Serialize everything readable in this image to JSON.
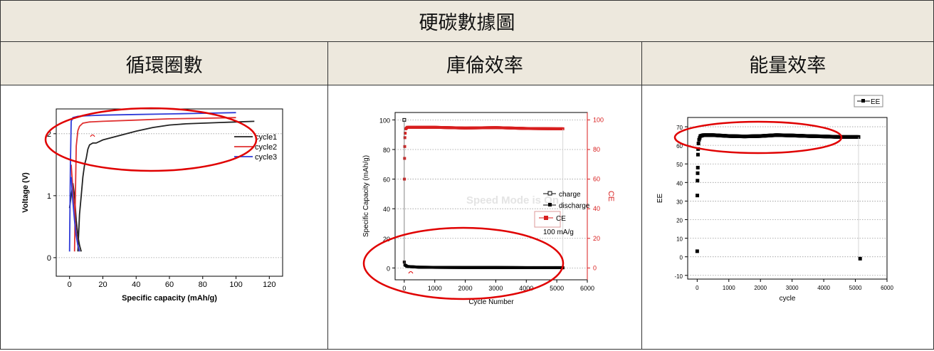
{
  "title": "硬碳數據圖",
  "headers": [
    "循環圈數",
    "庫倫效率",
    "能量效率"
  ],
  "colors": {
    "header_bg": "#ede8dd",
    "annotation": "#e00000",
    "cycle1": "#222222",
    "cycle2": "#e03030",
    "cycle3": "#2f3bd8",
    "ce": "#d81e1e"
  },
  "chart_data": [
    {
      "type": "line",
      "xlabel": "Specific capacity (mAh/g)",
      "ylabel": "Voltage (V)",
      "xlim": [
        -8,
        128
      ],
      "ylim": [
        -0.3,
        2.4
      ],
      "x_ticks": [
        "0",
        "20",
        "40",
        "60",
        "80",
        "100",
        "120"
      ],
      "y_ticks": [
        "0",
        "1",
        "2"
      ],
      "legend": [
        "cycle1",
        "cycle2",
        "cycle3"
      ],
      "series": [
        {
          "name": "cycle1",
          "charge": [
            [
              5,
              0.1
            ],
            [
              6,
              0.7
            ],
            [
              7,
              1.0
            ],
            [
              8,
              1.3
            ],
            [
              9,
              1.5
            ],
            [
              10,
              1.6
            ],
            [
              11,
              1.75
            ],
            [
              12,
              1.82
            ],
            [
              14,
              1.85
            ],
            [
              16,
              1.85
            ],
            [
              20,
              1.9
            ],
            [
              30,
              1.97
            ],
            [
              40,
              2.04
            ],
            [
              50,
              2.1
            ],
            [
              60,
              2.14
            ],
            [
              70,
              2.16
            ],
            [
              80,
              2.17
            ],
            [
              90,
              2.18
            ],
            [
              100,
              2.19
            ],
            [
              111,
              2.2
            ]
          ],
          "discharge": [
            [
              0,
              0.8
            ],
            [
              1,
              1.0
            ],
            [
              2,
              1.2
            ],
            [
              3,
              1.0
            ],
            [
              4,
              0.6
            ],
            [
              5,
              0.35
            ],
            [
              6,
              0.2
            ],
            [
              7,
              0.1
            ]
          ]
        },
        {
          "name": "cycle2",
          "charge": [
            [
              3,
              0.1
            ],
            [
              3.5,
              1.0
            ],
            [
              4,
              1.8
            ],
            [
              5,
              2.05
            ],
            [
              6,
              2.12
            ],
            [
              8,
              2.17
            ],
            [
              12,
              2.19
            ],
            [
              20,
              2.2
            ],
            [
              40,
              2.22
            ],
            [
              60,
              2.24
            ],
            [
              80,
              2.25
            ],
            [
              100,
              2.26
            ]
          ],
          "discharge": [
            [
              1,
              1.5
            ],
            [
              2,
              1.1
            ],
            [
              3,
              0.7
            ],
            [
              4,
              0.4
            ],
            [
              5,
              0.2
            ],
            [
              6,
              0.1
            ]
          ]
        },
        {
          "name": "cycle3",
          "charge": [
            [
              0,
              0.1
            ],
            [
              0.5,
              1.5
            ],
            [
              1,
              2.2
            ],
            [
              2,
              2.26
            ],
            [
              5,
              2.28
            ],
            [
              10,
              2.29
            ],
            [
              20,
              2.3
            ],
            [
              40,
              2.31
            ],
            [
              60,
              2.32
            ],
            [
              80,
              2.33
            ],
            [
              100,
              2.34
            ]
          ],
          "discharge": [
            [
              1,
              1.3
            ],
            [
              2,
              0.9
            ],
            [
              3,
              0.6
            ],
            [
              4,
              0.35
            ],
            [
              5,
              0.2
            ],
            [
              6,
              0.1
            ]
          ]
        }
      ]
    },
    {
      "type": "scatter",
      "xlabel": "Cycle Number",
      "ylabel": "Specific Capacity (mAh/g)",
      "y2label": "CE",
      "xlim": [
        -300,
        6000
      ],
      "ylim": [
        -8,
        105
      ],
      "x_ticks": [
        "0",
        "1000",
        "2000",
        "3000",
        "4000",
        "5000",
        "6000"
      ],
      "y_ticks": [
        "0",
        "20",
        "40",
        "60",
        "80",
        "100"
      ],
      "y2_ticks": [
        "0",
        "20",
        "40",
        "60",
        "80",
        "100"
      ],
      "legend": [
        "charge",
        "discharge",
        "CE"
      ],
      "note": "100 mA/g",
      "watermark": "Speed Mode is On",
      "series": [
        {
          "name": "charge",
          "points": [
            [
              1,
              100
            ],
            [
              5,
              3
            ],
            [
              50,
              1
            ],
            [
              200,
              0.5
            ],
            [
              1000,
              0.3
            ],
            [
              5200,
              0.2
            ]
          ]
        },
        {
          "name": "discharge",
          "points": [
            [
              1,
              4
            ],
            [
              20,
              2
            ],
            [
              100,
              1
            ],
            [
              500,
              0.5
            ],
            [
              1000,
              0.4
            ],
            [
              2000,
              0.3
            ],
            [
              3000,
              0.3
            ],
            [
              4000,
              0.2
            ],
            [
              5200,
              0.2
            ]
          ]
        },
        {
          "name": "CE",
          "points": [
            [
              1,
              4
            ],
            [
              5,
              60
            ],
            [
              10,
              74
            ],
            [
              15,
              82
            ],
            [
              20,
              88
            ],
            [
              30,
              91
            ],
            [
              50,
              94
            ],
            [
              100,
              95
            ],
            [
              500,
              95
            ],
            [
              1000,
              95
            ],
            [
              2000,
              94.5
            ],
            [
              3000,
              94.8
            ],
            [
              4000,
              94.2
            ],
            [
              5000,
              94
            ],
            [
              5200,
              94
            ],
            [
              5200,
              0
            ]
          ]
        }
      ]
    },
    {
      "type": "scatter",
      "xlabel": "cycle",
      "ylabel": "EE",
      "xlim": [
        -300,
        6000
      ],
      "ylim": [
        -12,
        75
      ],
      "x_ticks": [
        "0",
        "1000",
        "2000",
        "3000",
        "4000",
        "5000",
        "6000"
      ],
      "y_ticks": [
        "-10",
        "0",
        "10",
        "20",
        "30",
        "40",
        "50",
        "60",
        "70"
      ],
      "legend": [
        "EE"
      ],
      "series": [
        {
          "name": "EE",
          "points": [
            [
              1,
              3
            ],
            [
              5,
              33
            ],
            [
              10,
              41
            ],
            [
              15,
              45
            ],
            [
              20,
              48
            ],
            [
              25,
              55
            ],
            [
              30,
              58
            ],
            [
              40,
              61
            ],
            [
              60,
              63
            ],
            [
              100,
              65
            ],
            [
              200,
              65.5
            ],
            [
              500,
              65.5
            ],
            [
              1000,
              65
            ],
            [
              1500,
              64.8
            ],
            [
              2000,
              65
            ],
            [
              2500,
              65.5
            ],
            [
              3000,
              65.3
            ],
            [
              3500,
              65
            ],
            [
              4000,
              64.8
            ],
            [
              4500,
              64.5
            ],
            [
              5000,
              64.5
            ],
            [
              5100,
              64.5
            ],
            [
              5150,
              -1
            ]
          ]
        }
      ]
    }
  ]
}
